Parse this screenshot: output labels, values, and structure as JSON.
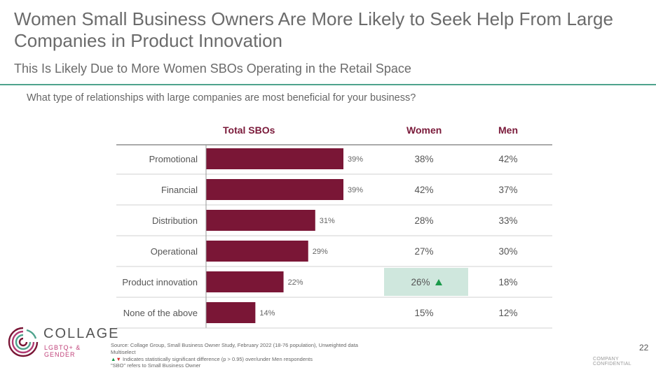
{
  "title": "Women Small Business Owners Are More Likely to Seek Help From Large Companies in Product Innovation",
  "subtitle": "This Is Likely Due to More Women SBOs Operating in the Retail Space",
  "question": "What type of relationships with large companies are most beneficial for your business?",
  "columns": {
    "total": "Total SBOs",
    "women": "Women",
    "men": "Men"
  },
  "colors": {
    "bar": "#7a1636",
    "highlight": "#cfe7dd",
    "accent_rule": "#4ea38d",
    "sig_up": "#1a9a4a",
    "sig_down": "#d62b2b"
  },
  "chart_data": {
    "type": "bar",
    "orientation": "horizontal",
    "categories": [
      "Promotional",
      "Financial",
      "Distribution",
      "Operational",
      "Product innovation",
      "None of the above"
    ],
    "values": [
      39,
      39,
      31,
      29,
      22,
      14
    ],
    "value_labels": [
      "39%",
      "39%",
      "31%",
      "29%",
      "22%",
      "14%"
    ],
    "xlim": [
      0,
      50
    ],
    "grid": false,
    "table": {
      "women": [
        "38%",
        "42%",
        "28%",
        "27%",
        "26%",
        "15%"
      ],
      "men": [
        "42%",
        "37%",
        "33%",
        "30%",
        "18%",
        "12%"
      ],
      "highlight": [
        false,
        false,
        false,
        false,
        true,
        false
      ],
      "sig_up": [
        false,
        false,
        false,
        false,
        true,
        false
      ]
    }
  },
  "footnotes": [
    "Source: Collage Group, Small Business Owner Study, February 2022 (18-76 population), Unweighted data",
    "Multiselect",
    "▲▼ Indicates statistically significant difference (p > 0.95) over/under Men respondents",
    "\"SBO\" refers to Small Business Owner"
  ],
  "page_number": "22",
  "confidential": "COMPANY CONFIDENTIAL",
  "logo": {
    "name": "COLLAGE",
    "sub": "LGBTQ+ & GENDER",
    "icon": "collage-logo-icon"
  }
}
